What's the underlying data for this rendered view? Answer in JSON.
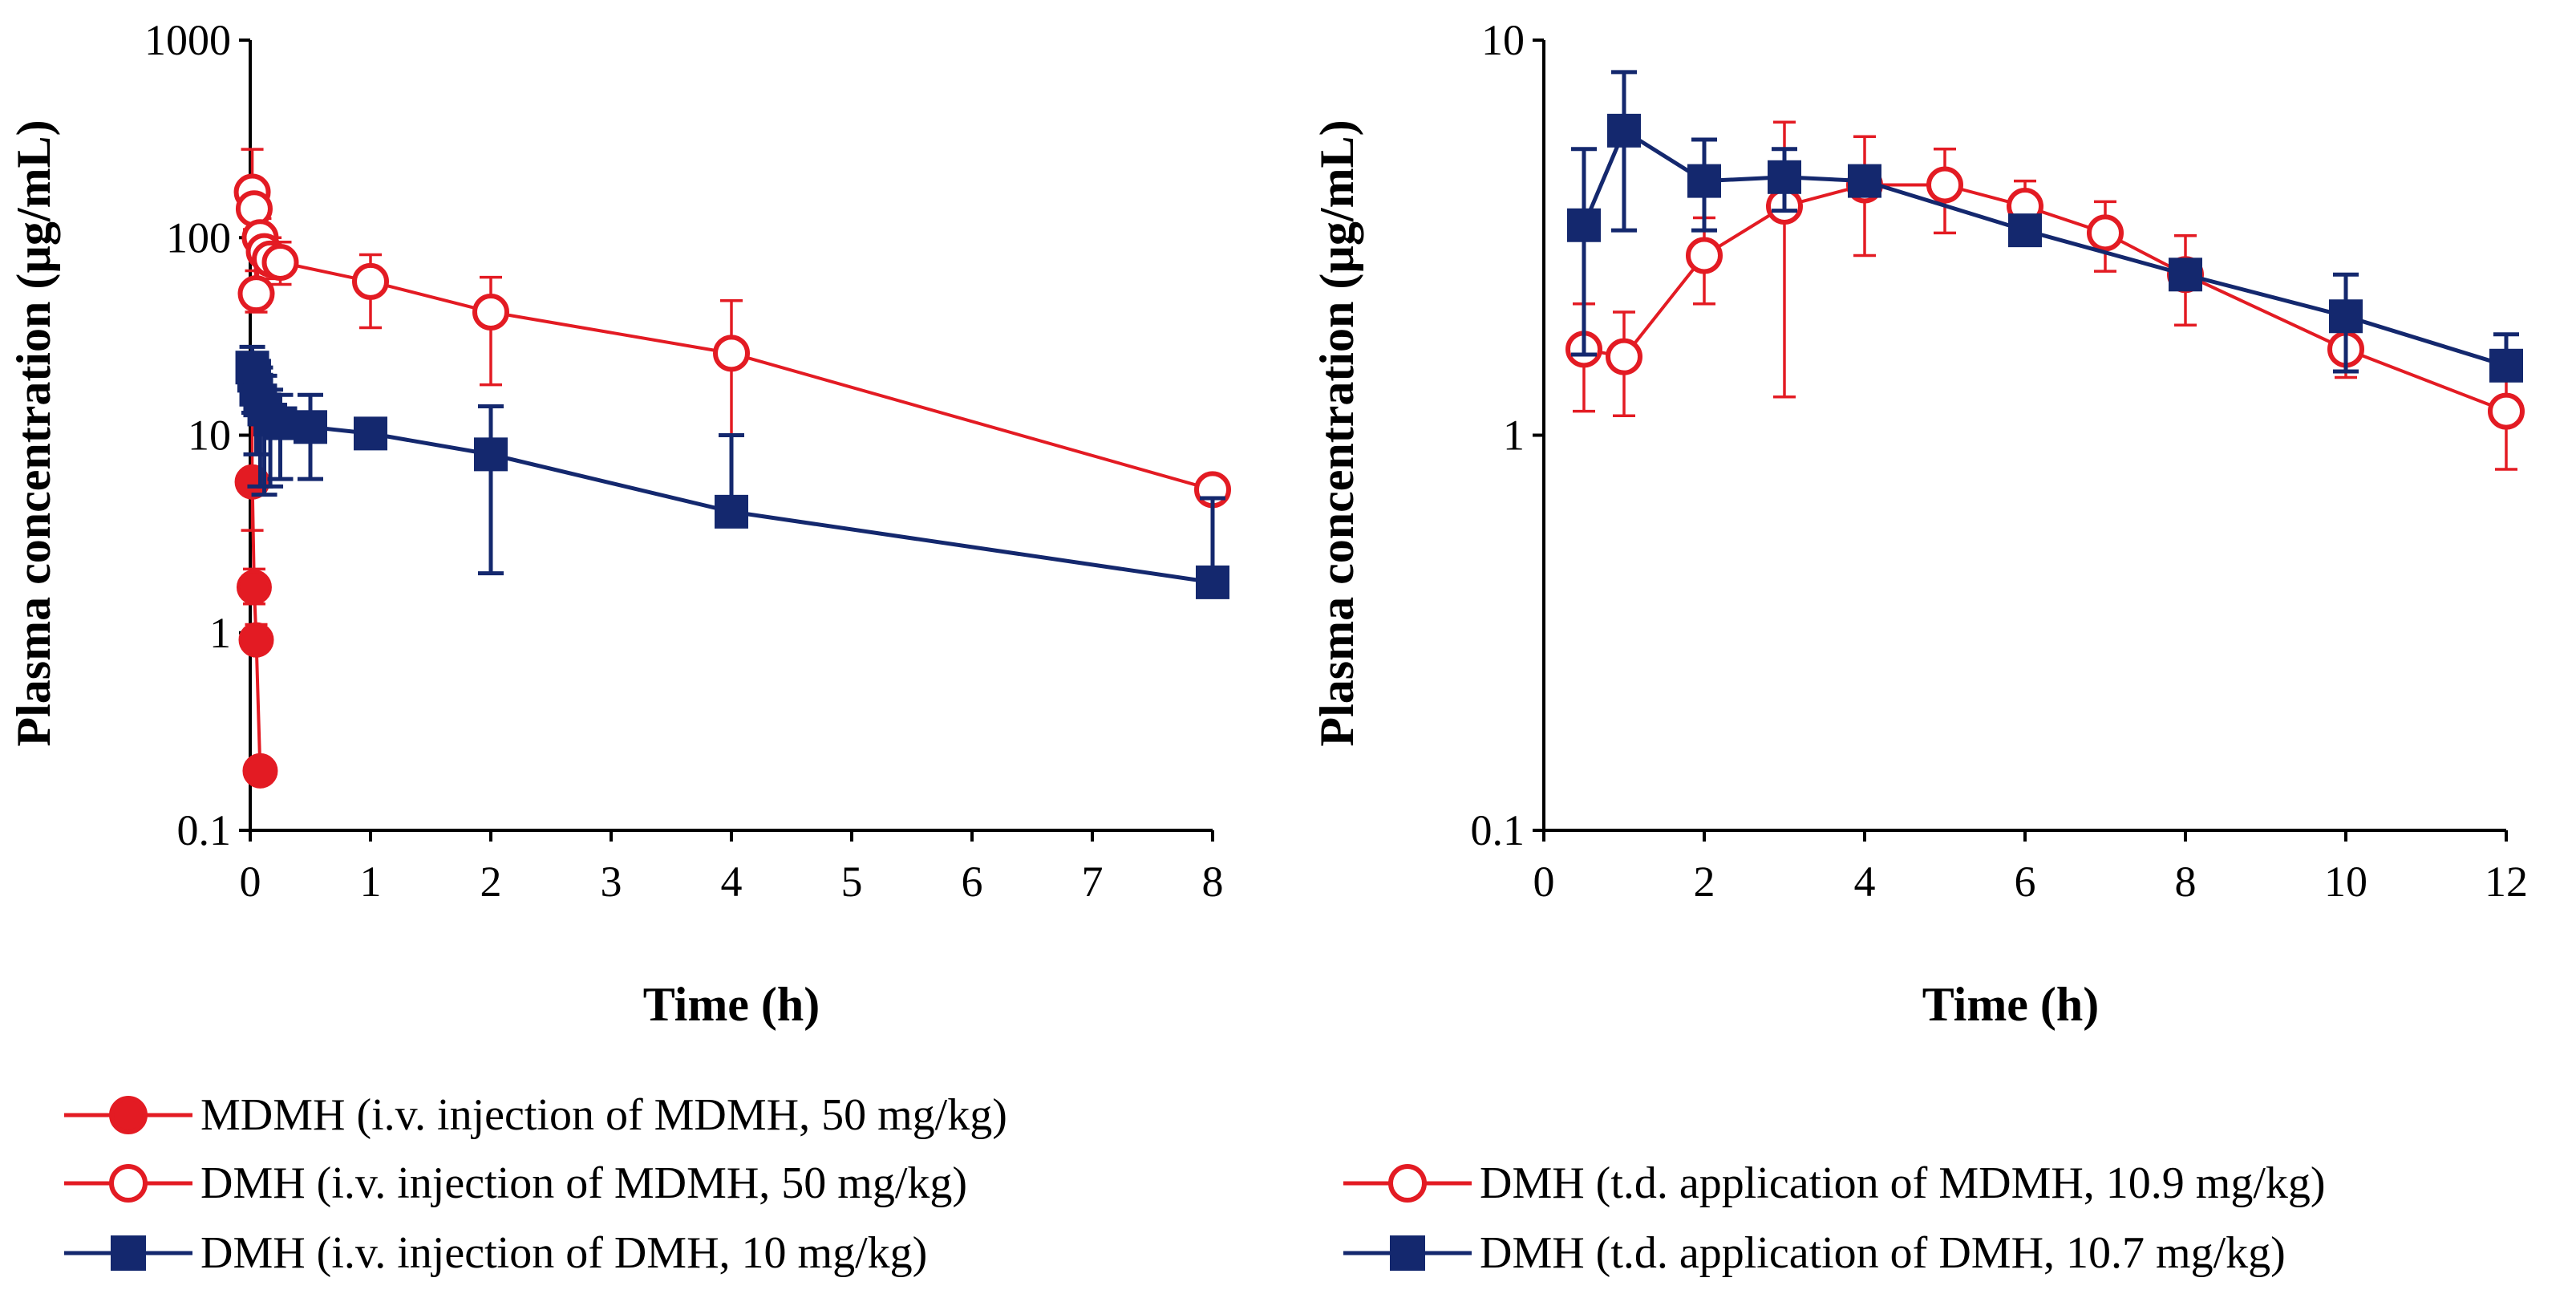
{
  "colors": {
    "red": "#e31b23",
    "navy": "#14286e",
    "axis": "#000000"
  },
  "chart_data": [
    {
      "type": "scatter",
      "title": "",
      "xlabel": "Time (h)",
      "ylabel": "Plasma concentration (µg/mL)",
      "x_scale": "linear",
      "y_scale": "log",
      "xlim": [
        0,
        8
      ],
      "ylim": [
        0.1,
        1000
      ],
      "xticks": [
        0,
        1,
        2,
        3,
        4,
        5,
        6,
        7,
        8
      ],
      "xtick_labels": [
        "0",
        "1",
        "2",
        "3",
        "4",
        "5",
        "6",
        "7",
        "8"
      ],
      "yticks": [
        0.1,
        1,
        10,
        100,
        1000
      ],
      "ytick_labels": [
        "0.1",
        "1",
        "10",
        "100",
        "1000"
      ],
      "series": [
        {
          "name": "MDMH (i.v. injection of MDMH, 50 mg/kg)",
          "color": "#e31b23",
          "marker": "filled-circle",
          "x": [
            0.017,
            0.033,
            0.05,
            0.083
          ],
          "y": [
            5.8,
            1.7,
            0.92,
            0.2
          ],
          "error_upper": [
            16,
            2.1,
            1.1,
            0.23
          ],
          "error_lower": [
            3.3,
            1.4,
            0.8,
            0.18
          ]
        },
        {
          "name": "DMH (i.v. injection of MDMH, 50 mg/kg)",
          "color": "#e31b23",
          "marker": "open-circle",
          "x": [
            0.017,
            0.033,
            0.05,
            0.083,
            0.117,
            0.167,
            0.25,
            1,
            2,
            4,
            8
          ],
          "y": [
            170,
            140,
            52,
            100,
            85,
            78,
            75,
            60,
            42,
            26,
            5.3
          ],
          "error_upper": [
            280,
            190,
            68,
            125,
            105,
            100,
            95,
            82,
            63,
            48,
            5.3
          ],
          "error_lower": [
            125,
            110,
            42,
            80,
            68,
            62,
            58,
            35,
            18,
            10,
            5.3
          ]
        },
        {
          "name": "DMH (i.v. injection of DMH, 10 mg/kg)",
          "color": "#14286e",
          "marker": "filled-square",
          "x": [
            0.017,
            0.033,
            0.05,
            0.083,
            0.117,
            0.167,
            0.25,
            0.5,
            1,
            2,
            4,
            8
          ],
          "y": [
            22,
            20,
            17,
            15,
            13.5,
            12,
            11.5,
            11,
            10.2,
            8,
            4.1,
            1.8
          ],
          "error_upper": [
            28,
            26,
            24,
            22,
            20,
            17,
            16,
            16,
            10.2,
            14,
            10,
            4.8
          ],
          "error_lower": [
            16,
            13,
            8,
            5.5,
            5,
            5.5,
            6,
            6,
            10.2,
            2,
            4.1,
            1.8
          ]
        }
      ]
    },
    {
      "type": "scatter",
      "title": "",
      "xlabel": "Time (h)",
      "ylabel": "Plasma concentration (µg/mL)",
      "x_scale": "linear",
      "y_scale": "log",
      "xlim": [
        0,
        12
      ],
      "ylim": [
        0.1,
        10
      ],
      "xticks": [
        0,
        2,
        4,
        6,
        8,
        10,
        12
      ],
      "xtick_labels": [
        "0",
        "2",
        "4",
        "6",
        "8",
        "10",
        "12"
      ],
      "yticks": [
        0.1,
        1,
        10
      ],
      "ytick_labels": [
        "0.1",
        "1",
        "10"
      ],
      "series": [
        {
          "name": "DMH (t.d. application of MDMH, 10.9 mg/kg)",
          "color": "#e31b23",
          "marker": "open-circle",
          "x": [
            0.5,
            1,
            2,
            3,
            4,
            5,
            6,
            7,
            8,
            10,
            12
          ],
          "y": [
            1.65,
            1.58,
            2.85,
            3.8,
            4.3,
            4.3,
            3.8,
            3.25,
            2.55,
            1.65,
            1.15
          ],
          "error_upper": [
            2.15,
            2.05,
            3.55,
            6.2,
            5.7,
            5.3,
            4.4,
            3.9,
            3.2,
            1.95,
            1.4
          ],
          "error_lower": [
            1.15,
            1.12,
            2.15,
            1.25,
            2.85,
            3.25,
            3.2,
            2.6,
            1.9,
            1.4,
            0.82
          ]
        },
        {
          "name": "DMH (t.d. application of DMH, 10.7 mg/kg)",
          "color": "#14286e",
          "marker": "filled-square",
          "x": [
            0.5,
            1,
            2,
            3,
            4,
            6,
            8,
            10,
            12
          ],
          "y": [
            3.4,
            5.9,
            4.4,
            4.5,
            4.4,
            3.3,
            2.55,
            2.0,
            1.5
          ],
          "error_upper": [
            5.3,
            8.3,
            5.6,
            5.3,
            4.4,
            3.3,
            2.55,
            2.55,
            1.8
          ],
          "error_lower": [
            1.6,
            3.3,
            3.3,
            3.7,
            4.4,
            3.3,
            2.55,
            1.45,
            1.5
          ]
        }
      ]
    }
  ]
}
